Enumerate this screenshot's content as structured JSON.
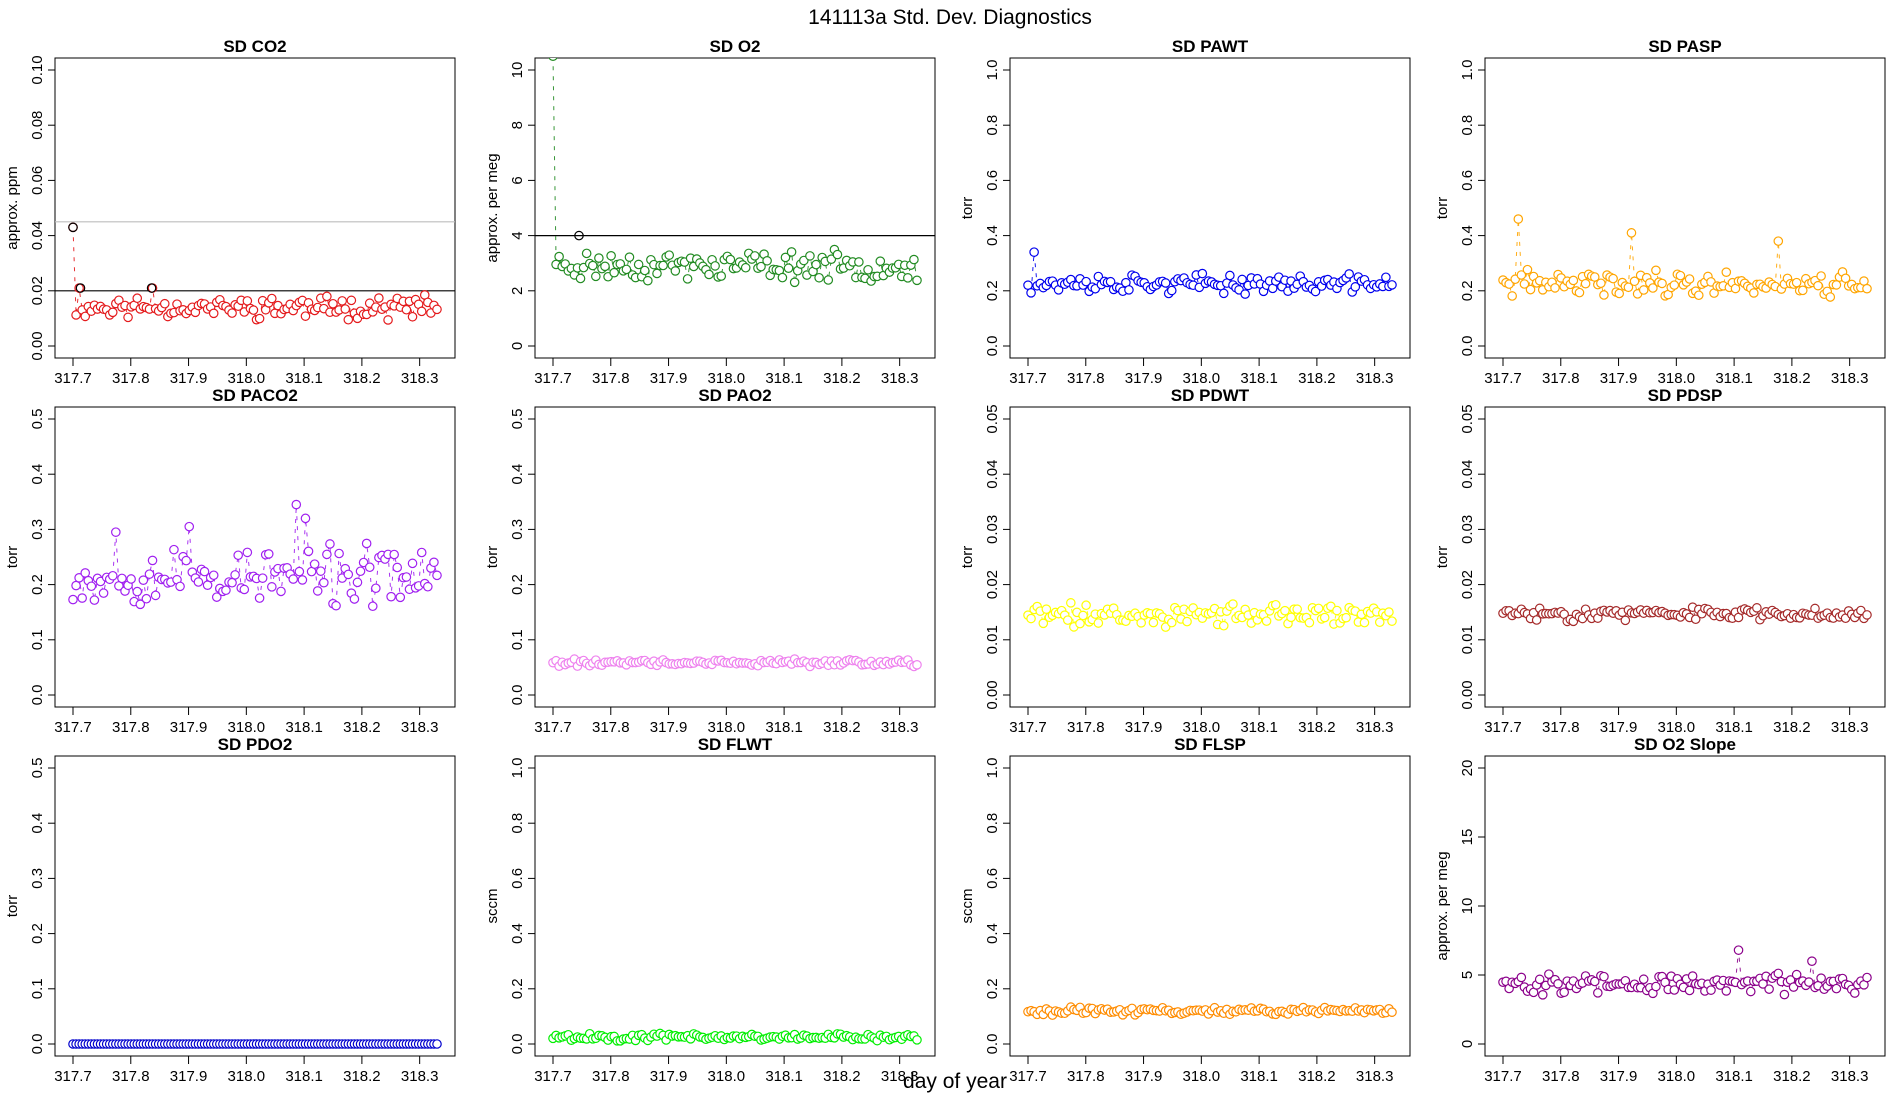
{
  "figure": {
    "title": "141113a   Std. Dev. Diagnostics",
    "xlabel": "day of year"
  },
  "chart_data": [
    {
      "type": "scatter",
      "title": "SD CO2",
      "ylabel": "approx. ppm",
      "xlim": [
        317.7,
        318.33
      ],
      "ylim": [
        0,
        0.1
      ],
      "yticks": [
        0,
        0.02,
        0.04,
        0.06,
        0.08,
        0.1
      ],
      "ytick_labels": [
        "0.00",
        "0.02",
        "0.04",
        "0.06",
        "0.08",
        "0.10"
      ],
      "xticks": [
        317.7,
        317.8,
        317.9,
        318.0,
        318.1,
        318.2,
        318.3
      ],
      "xtick_labels": [
        "317.7",
        "317.8",
        "317.9",
        "318.0",
        "318.1",
        "318.2",
        "318.3"
      ],
      "color": "#e41a1c",
      "base": 0.014,
      "amp": 0.003,
      "seed": 11,
      "n": 120,
      "hlines": [
        {
          "y": 0.02,
          "color": "#000000"
        },
        {
          "y": 0.045,
          "color": "#bdbdbd"
        }
      ],
      "spikes": [
        {
          "x": 317.7,
          "y": 0.043
        },
        {
          "x": 317.713,
          "y": 0.021
        },
        {
          "x": 317.836,
          "y": 0.021
        }
      ],
      "outliers": [
        {
          "x": 317.7,
          "y": 0.043
        },
        {
          "x": 317.713,
          "y": 0.021
        },
        {
          "x": 317.836,
          "y": 0.021
        }
      ]
    },
    {
      "type": "scatter",
      "title": "SD O2",
      "ylabel": "approx. per meg",
      "xlim": [
        317.7,
        318.33
      ],
      "ylim": [
        0,
        10
      ],
      "yticks": [
        0,
        2,
        4,
        6,
        8,
        10
      ],
      "ytick_labels": [
        "0",
        "2",
        "4",
        "6",
        "8",
        "10"
      ],
      "xticks": [
        317.7,
        317.8,
        317.9,
        318.0,
        318.1,
        318.2,
        318.3
      ],
      "xtick_labels": [
        "317.7",
        "317.8",
        "317.9",
        "318.0",
        "318.1",
        "318.2",
        "318.3"
      ],
      "color": "#228b22",
      "base": 2.9,
      "amp": 0.4,
      "seed": 23,
      "n": 120,
      "hlines": [
        {
          "y": 4,
          "color": "#000000"
        }
      ],
      "spikes": [
        {
          "x": 317.7,
          "y": 10.5
        }
      ],
      "outliers": [
        {
          "x": 317.745,
          "y": 4.0
        }
      ]
    },
    {
      "type": "scatter",
      "title": "SD PAWT",
      "ylabel": "torr",
      "xlim": [
        317.7,
        318.33
      ],
      "ylim": [
        0,
        1
      ],
      "yticks": [
        0,
        0.2,
        0.4,
        0.6,
        0.8,
        1.0
      ],
      "ytick_labels": [
        "0.0",
        "0.2",
        "0.4",
        "0.6",
        "0.8",
        "1.0"
      ],
      "xticks": [
        317.7,
        317.8,
        317.9,
        318.0,
        318.1,
        318.2,
        318.3
      ],
      "xtick_labels": [
        "317.7",
        "317.8",
        "317.9",
        "318.0",
        "318.1",
        "318.2",
        "318.3"
      ],
      "color": "#0000ee",
      "base": 0.225,
      "amp": 0.025,
      "seed": 37,
      "n": 120,
      "hlines": [],
      "spikes": [
        {
          "x": 317.713,
          "y": 0.34
        }
      ],
      "outliers": []
    },
    {
      "type": "scatter",
      "title": "SD PASP",
      "ylabel": "torr",
      "xlim": [
        317.7,
        318.33
      ],
      "ylim": [
        0,
        1
      ],
      "yticks": [
        0,
        0.2,
        0.4,
        0.6,
        0.8,
        1.0
      ],
      "ytick_labels": [
        "0.0",
        "0.2",
        "0.4",
        "0.6",
        "0.8",
        "1.0"
      ],
      "xticks": [
        317.7,
        317.8,
        317.9,
        318.0,
        318.1,
        318.2,
        318.3
      ],
      "xtick_labels": [
        "317.7",
        "317.8",
        "317.9",
        "318.0",
        "318.1",
        "318.2",
        "318.3"
      ],
      "color": "#ffa500",
      "base": 0.225,
      "amp": 0.035,
      "seed": 41,
      "n": 120,
      "hlines": [],
      "spikes": [
        {
          "x": 317.726,
          "y": 0.46
        },
        {
          "x": 317.921,
          "y": 0.41
        },
        {
          "x": 318.179,
          "y": 0.38
        }
      ],
      "outliers": []
    },
    {
      "type": "scatter",
      "title": "SD PACO2",
      "ylabel": "torr",
      "xlim": [
        317.7,
        318.33
      ],
      "ylim": [
        0,
        0.5
      ],
      "yticks": [
        0,
        0.1,
        0.2,
        0.3,
        0.4,
        0.5
      ],
      "ytick_labels": [
        "0.0",
        "0.1",
        "0.2",
        "0.3",
        "0.4",
        "0.5"
      ],
      "xticks": [
        317.7,
        317.8,
        317.9,
        318.0,
        318.1,
        318.2,
        318.3
      ],
      "xtick_labels": [
        "317.7",
        "317.8",
        "317.9",
        "318.0",
        "318.1",
        "318.2",
        "318.3"
      ],
      "color": "#a020f0",
      "base": 0.215,
      "amp": 0.04,
      "seed": 53,
      "n": 120,
      "hlines": [],
      "spikes": [
        {
          "x": 317.776,
          "y": 0.295
        },
        {
          "x": 317.902,
          "y": 0.305
        },
        {
          "x": 318.089,
          "y": 0.345
        },
        {
          "x": 318.1,
          "y": 0.32
        }
      ],
      "outliers": []
    },
    {
      "type": "scatter",
      "title": "SD PAO2",
      "ylabel": "torr",
      "xlim": [
        317.7,
        318.33
      ],
      "ylim": [
        0,
        0.5
      ],
      "yticks": [
        0,
        0.1,
        0.2,
        0.3,
        0.4,
        0.5
      ],
      "ytick_labels": [
        "0.0",
        "0.1",
        "0.2",
        "0.3",
        "0.4",
        "0.5"
      ],
      "xticks": [
        317.7,
        317.8,
        317.9,
        318.0,
        318.1,
        318.2,
        318.3
      ],
      "xtick_labels": [
        "317.7",
        "317.8",
        "317.9",
        "318.0",
        "318.1",
        "318.2",
        "318.3"
      ],
      "color": "#ee82ee",
      "base": 0.058,
      "amp": 0.005,
      "seed": 61,
      "n": 120,
      "hlines": [],
      "spikes": [],
      "outliers": []
    },
    {
      "type": "scatter",
      "title": "SD PDWT",
      "ylabel": "torr",
      "xlim": [
        317.7,
        318.33
      ],
      "ylim": [
        0,
        0.05
      ],
      "yticks": [
        0,
        0.01,
        0.02,
        0.03,
        0.04,
        0.05
      ],
      "ytick_labels": [
        "0.00",
        "0.01",
        "0.02",
        "0.03",
        "0.04",
        "0.05"
      ],
      "xticks": [
        317.7,
        317.8,
        317.9,
        318.0,
        318.1,
        318.2,
        318.3
      ],
      "xtick_labels": [
        "317.7",
        "317.8",
        "317.9",
        "318.0",
        "318.1",
        "318.2",
        "318.3"
      ],
      "color": "#ffff00",
      "base": 0.0145,
      "amp": 0.0015,
      "seed": 71,
      "n": 120,
      "hlines": [],
      "spikes": [],
      "outliers": []
    },
    {
      "type": "scatter",
      "title": "SD PDSP",
      "ylabel": "torr",
      "xlim": [
        317.7,
        318.33
      ],
      "ylim": [
        0,
        0.05
      ],
      "yticks": [
        0,
        0.01,
        0.02,
        0.03,
        0.04,
        0.05
      ],
      "ytick_labels": [
        "0.00",
        "0.01",
        "0.02",
        "0.03",
        "0.04",
        "0.05"
      ],
      "xticks": [
        317.7,
        317.8,
        317.9,
        318.0,
        318.1,
        318.2,
        318.3
      ],
      "xtick_labels": [
        "317.7",
        "317.8",
        "317.9",
        "318.0",
        "318.1",
        "318.2",
        "318.3"
      ],
      "color": "#a52a2a",
      "base": 0.0147,
      "amp": 0.0009,
      "seed": 83,
      "n": 120,
      "hlines": [],
      "spikes": [],
      "outliers": []
    },
    {
      "type": "scatter",
      "title": "SD PDO2",
      "ylabel": "torr",
      "xlim": [
        317.7,
        318.33
      ],
      "ylim": [
        0,
        0.5
      ],
      "yticks": [
        0,
        0.1,
        0.2,
        0.3,
        0.4,
        0.5
      ],
      "ytick_labels": [
        "0.0",
        "0.1",
        "0.2",
        "0.3",
        "0.4",
        "0.5"
      ],
      "xticks": [
        317.7,
        317.8,
        317.9,
        318.0,
        318.1,
        318.2,
        318.3
      ],
      "xtick_labels": [
        "317.7",
        "317.8",
        "317.9",
        "318.0",
        "318.1",
        "318.2",
        "318.3"
      ],
      "color": "#0000cd",
      "base": 0.0,
      "amp": 0.0,
      "seed": 97,
      "n": 120,
      "hlines": [],
      "spikes": [],
      "outliers": []
    },
    {
      "type": "scatter",
      "title": "SD FLWT",
      "ylabel": "sccm",
      "xlim": [
        317.7,
        318.33
      ],
      "ylim": [
        0,
        1
      ],
      "yticks": [
        0,
        0.2,
        0.4,
        0.6,
        0.8,
        1.0
      ],
      "ytick_labels": [
        "0.0",
        "0.2",
        "0.4",
        "0.6",
        "0.8",
        "1.0"
      ],
      "xticks": [
        317.7,
        317.8,
        317.9,
        318.0,
        318.1,
        318.2,
        318.3
      ],
      "xtick_labels": [
        "317.7",
        "317.8",
        "317.9",
        "318.0",
        "318.1",
        "318.2",
        "318.3"
      ],
      "color": "#00ee00",
      "base": 0.025,
      "amp": 0.01,
      "seed": 101,
      "n": 120,
      "hlines": [],
      "spikes": [],
      "outliers": []
    },
    {
      "type": "scatter",
      "title": "SD FLSP",
      "ylabel": "sccm",
      "xlim": [
        317.7,
        318.33
      ],
      "ylim": [
        0,
        1
      ],
      "yticks": [
        0,
        0.2,
        0.4,
        0.6,
        0.8,
        1.0
      ],
      "ytick_labels": [
        "0.0",
        "0.2",
        "0.4",
        "0.6",
        "0.8",
        "1.0"
      ],
      "xticks": [
        317.7,
        317.8,
        317.9,
        318.0,
        318.1,
        318.2,
        318.3
      ],
      "xtick_labels": [
        "317.7",
        "317.8",
        "317.9",
        "318.0",
        "318.1",
        "318.2",
        "318.3"
      ],
      "color": "#ff8c00",
      "base": 0.12,
      "amp": 0.01,
      "seed": 113,
      "n": 120,
      "hlines": [],
      "spikes": [],
      "outliers": []
    },
    {
      "type": "scatter",
      "title": "SD O2 Slope",
      "ylabel": "approx. per meg",
      "xlim": [
        317.7,
        318.33
      ],
      "ylim": [
        0,
        20
      ],
      "yticks": [
        0,
        5,
        10,
        15,
        20
      ],
      "ytick_labels": [
        "0",
        "5",
        "10",
        "15",
        "20"
      ],
      "xticks": [
        317.7,
        317.8,
        317.9,
        318.0,
        318.1,
        318.2,
        318.3
      ],
      "xtick_labels": [
        "317.7",
        "317.8",
        "317.9",
        "318.0",
        "318.1",
        "318.2",
        "318.3"
      ],
      "color": "#8b008b",
      "base": 4.4,
      "amp": 0.6,
      "seed": 127,
      "n": 120,
      "hlines": [],
      "spikes": [
        {
          "x": 318.11,
          "y": 6.8
        },
        {
          "x": 318.236,
          "y": 6.0
        }
      ],
      "outliers": []
    }
  ]
}
